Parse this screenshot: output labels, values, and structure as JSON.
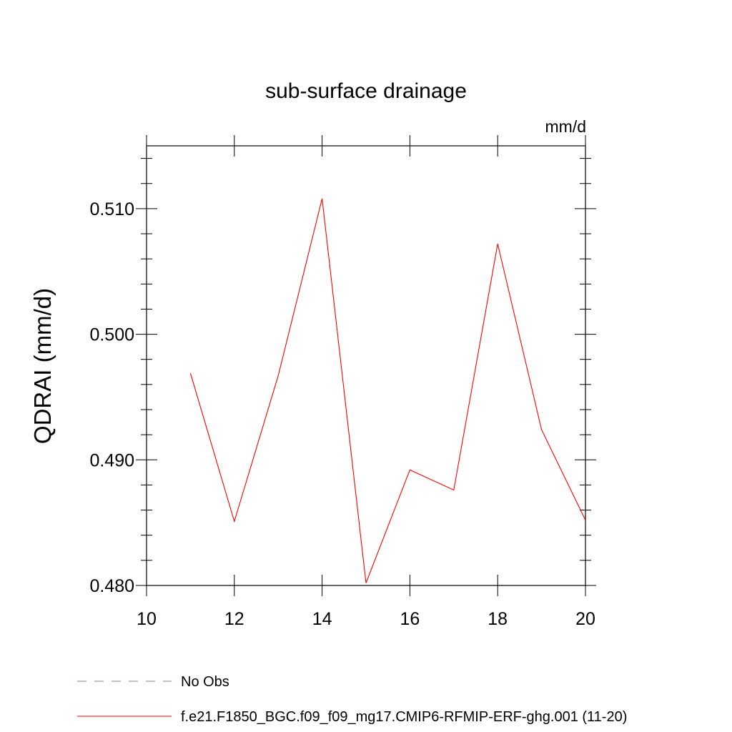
{
  "chart_data": {
    "type": "line",
    "title": "sub-surface drainage",
    "units_label": "mm/d",
    "xlabel": "",
    "ylabel": "QDRAI  (mm/d)",
    "xlim": [
      10,
      20
    ],
    "ylim": [
      0.48,
      0.515
    ],
    "xticks": [
      10,
      12,
      14,
      16,
      18,
      20
    ],
    "xtick_labels": [
      "10",
      "12",
      "14",
      "16",
      "18",
      "20"
    ],
    "yticks": [
      0.48,
      0.49,
      0.5,
      0.51
    ],
    "ytick_labels": [
      "0.480",
      "0.490",
      "0.500",
      "0.510"
    ],
    "grid": false,
    "legend_position": "bottom",
    "series": [
      {
        "name": "f.e21.F1850_BGC.f09_f09_mg17.CMIP6-RFMIP-ERF-ghg.001 (11-20)",
        "color": "#ff0000",
        "dash": "solid",
        "x": [
          11,
          12,
          13,
          14,
          15,
          16,
          17,
          18,
          19,
          20
        ],
        "y": [
          0.4969,
          0.4851,
          0.4967,
          0.5108,
          0.4802,
          0.4892,
          0.4876,
          0.5072,
          0.4924,
          0.4852
        ]
      }
    ],
    "legend": [
      {
        "label": "No Obs",
        "color": "#7f7fbf",
        "dash": "dashed"
      },
      {
        "label": "f.e21.F1850_BGC.f09_f09_mg17.CMIP6-RFMIP-ERF-ghg.001 (11-20)",
        "color": "#ff0000",
        "dash": "solid"
      }
    ]
  }
}
